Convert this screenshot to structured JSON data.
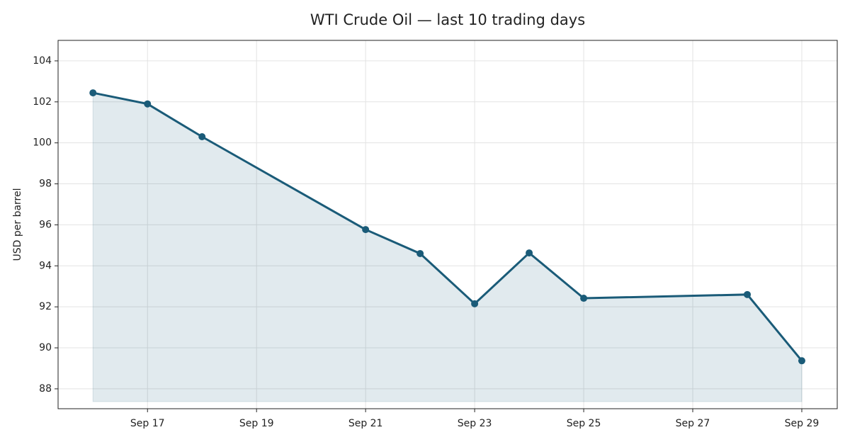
{
  "chart_data": {
    "type": "area-line",
    "title": "WTI Crude Oil — last 10 trading days",
    "y_label": "USD per barrel",
    "x": [
      16,
      17,
      18,
      21,
      22,
      23,
      24,
      25,
      28,
      29
    ],
    "series": [
      {
        "color": "#1a5b78",
        "values": [
          102.44,
          101.9,
          100.3,
          95.77,
          94.6,
          92.15,
          94.63,
          92.42,
          92.6,
          89.37
        ]
      }
    ],
    "xlim": [
      15.36,
      29.65
    ],
    "xticks": [
      {
        "value": 17,
        "label": "Sep 17"
      },
      {
        "value": 19,
        "label": "Sep 19"
      },
      {
        "value": 21,
        "label": "Sep 21"
      },
      {
        "value": 23,
        "label": "Sep 23"
      },
      {
        "value": 25,
        "label": "Sep 25"
      },
      {
        "value": 27,
        "label": "Sep 27"
      },
      {
        "value": 29,
        "label": "Sep 29"
      }
    ],
    "ylim": [
      87.03,
      105.0
    ],
    "yticks": [
      88,
      90,
      92,
      94,
      96,
      98,
      100,
      102,
      104
    ],
    "grid": true
  }
}
